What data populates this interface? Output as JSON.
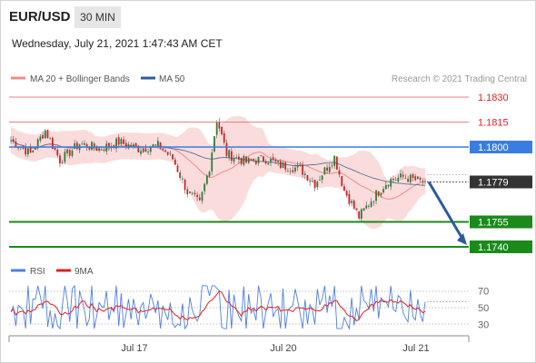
{
  "header": {
    "symbol": "EUR/USD",
    "period": "30 MIN",
    "datetime": "Wednesday, July 21, 2021 1:47:43 AM CET"
  },
  "chart_data": [
    {
      "type": "candlestick",
      "title": "EUR/USD 30 MIN",
      "legend": [
        {
          "name": "MA 20 + Bollinger Bands",
          "color": "#f28b8b"
        },
        {
          "name": "MA 50",
          "color": "#2e5b9a"
        }
      ],
      "credit": "Research © 2021 Trading Central",
      "x_tick_labels": [
        "Jul 17",
        "Jul 20",
        "Jul 21"
      ],
      "y_range": [
        1.1735,
        1.1835
      ],
      "current_price": 1.1779,
      "levels": [
        {
          "label": "1.1830",
          "value": 1.183,
          "style": "resistance",
          "color": "#e88080"
        },
        {
          "label": "1.1815",
          "value": 1.1815,
          "style": "resistance",
          "color": "#e88080"
        },
        {
          "label": "1.1800",
          "value": 1.18,
          "style": "pivot",
          "color": "#3a7de0"
        },
        {
          "label": "1.1779",
          "value": 1.1779,
          "style": "current",
          "color": "#333333"
        },
        {
          "label": "1.1755",
          "value": 1.1755,
          "style": "support",
          "color": "#1a8a1a"
        },
        {
          "label": "1.1740",
          "value": 1.174,
          "style": "support",
          "color": "#1a8a1a"
        }
      ],
      "projection": {
        "from_value": 1.1779,
        "to_value": 1.174,
        "color": "#2e5b9a"
      },
      "series_anchors": [
        {
          "t": 0,
          "v": 1.1804
        },
        {
          "t": 8,
          "v": 1.1796
        },
        {
          "t": 14,
          "v": 1.181
        },
        {
          "t": 20,
          "v": 1.1792
        },
        {
          "t": 28,
          "v": 1.1802
        },
        {
          "t": 36,
          "v": 1.1799
        },
        {
          "t": 44,
          "v": 1.1803
        },
        {
          "t": 52,
          "v": 1.1799
        },
        {
          "t": 60,
          "v": 1.1801
        },
        {
          "t": 66,
          "v": 1.1793
        },
        {
          "t": 72,
          "v": 1.1773
        },
        {
          "t": 77,
          "v": 1.1766
        },
        {
          "t": 81,
          "v": 1.1788
        },
        {
          "t": 84,
          "v": 1.1817
        },
        {
          "t": 88,
          "v": 1.1796
        },
        {
          "t": 96,
          "v": 1.1791
        },
        {
          "t": 104,
          "v": 1.1793
        },
        {
          "t": 110,
          "v": 1.1789
        },
        {
          "t": 118,
          "v": 1.1787
        },
        {
          "t": 124,
          "v": 1.1778
        },
        {
          "t": 132,
          "v": 1.1794
        },
        {
          "t": 136,
          "v": 1.1774
        },
        {
          "t": 142,
          "v": 1.1758
        },
        {
          "t": 148,
          "v": 1.177
        },
        {
          "t": 154,
          "v": 1.178
        },
        {
          "t": 160,
          "v": 1.1782
        },
        {
          "t": 168,
          "v": 1.1779
        }
      ]
    },
    {
      "type": "line",
      "legend": [
        {
          "name": "RSI",
          "color": "#4f7fe0"
        },
        {
          "name": "9MA",
          "color": "#e02020"
        }
      ],
      "y_range": [
        20,
        80
      ],
      "y_ticks": [
        70,
        50,
        30
      ]
    }
  ]
}
